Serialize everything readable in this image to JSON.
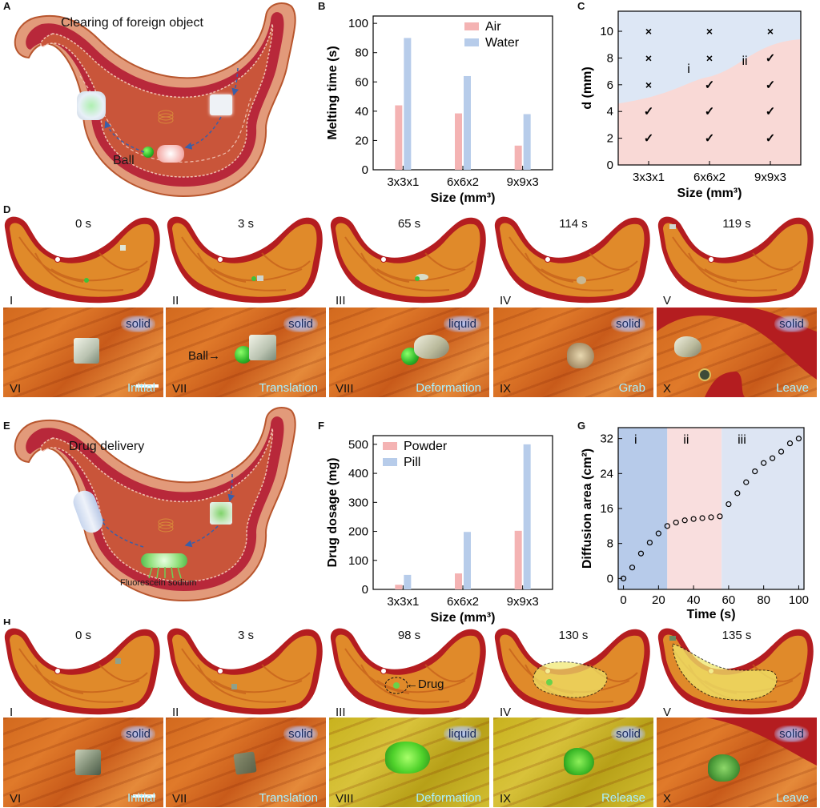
{
  "panels": {
    "A": {
      "letter": "A",
      "caption": "Clearing of foreign object",
      "ball_label": "Ball"
    },
    "B": {
      "letter": "B"
    },
    "C": {
      "letter": "C",
      "region_i": "i",
      "region_ii": "ii"
    },
    "D": {
      "letter": "D",
      "top": [
        {
          "time": "0 s",
          "roman": "I"
        },
        {
          "time": "3 s",
          "roman": "II"
        },
        {
          "time": "65 s",
          "roman": "III"
        },
        {
          "time": "114 s",
          "roman": "IV"
        },
        {
          "time": "119 s",
          "roman": "V"
        }
      ],
      "bottom": [
        {
          "roman": "VI",
          "state": "solid",
          "action": "Initial"
        },
        {
          "roman": "VII",
          "state": "solid",
          "action": "Translation",
          "ball": "Ball"
        },
        {
          "roman": "VIII",
          "state": "liquid",
          "action": "Deformation"
        },
        {
          "roman": "IX",
          "state": "solid",
          "action": "Grab"
        },
        {
          "roman": "X",
          "state": "solid",
          "action": "Leave"
        }
      ]
    },
    "E": {
      "letter": "E",
      "caption": "Drug delivery",
      "sub_label": "Fluorescein sodium"
    },
    "F": {
      "letter": "F"
    },
    "G": {
      "letter": "G",
      "region_i": "i",
      "region_ii": "ii",
      "region_iii": "iii"
    },
    "H": {
      "letter": "H",
      "top": [
        {
          "time": "0 s",
          "roman": "I"
        },
        {
          "time": "3 s",
          "roman": "II"
        },
        {
          "time": "98 s",
          "roman": "III",
          "drug": "Drug"
        },
        {
          "time": "130 s",
          "roman": "IV"
        },
        {
          "time": "135 s",
          "roman": "V"
        }
      ],
      "bottom": [
        {
          "roman": "VI",
          "state": "solid",
          "action": "Initial"
        },
        {
          "roman": "VII",
          "state": "solid",
          "action": "Translation"
        },
        {
          "roman": "VIII",
          "state": "liquid",
          "action": "Deformation"
        },
        {
          "roman": "IX",
          "state": "solid",
          "action": "Release"
        },
        {
          "roman": "X",
          "state": "solid",
          "action": "Leave"
        }
      ]
    }
  },
  "colors": {
    "air": "#f4b3b3",
    "water": "#b7ccea",
    "safe": "#f9d9d6",
    "unsafe": "#dde7f5",
    "g_i": "#b7cbea",
    "g_ii": "#f9dede",
    "g_iii": "#dde5f3"
  },
  "chart_data": [
    {
      "id": "B",
      "type": "bar",
      "categories": [
        "3x3x1",
        "6x6x2",
        "9x9x3"
      ],
      "series": [
        {
          "name": "Air",
          "values": [
            44,
            38.5,
            16.5
          ]
        },
        {
          "name": "Water",
          "values": [
            90,
            64,
            38
          ]
        }
      ],
      "xlabel": "Size (mm³)",
      "ylabel": "Melting time (s)",
      "yticks": [
        "0",
        "20",
        "40",
        "60",
        "80",
        "100"
      ],
      "ylim": [
        0,
        105
      ],
      "legend": "top-right",
      "grid": false
    },
    {
      "id": "C",
      "type": "scatter",
      "categories": [
        "3x3x1",
        "6x6x2",
        "9x9x3"
      ],
      "xlabel": "Size (mm³)",
      "ylabel": "d (mm)",
      "yticks": [
        "0",
        "2",
        "4",
        "6",
        "8",
        "10"
      ],
      "ylim": [
        0,
        11.5
      ],
      "points": [
        {
          "x": "3x3x1",
          "y": 10,
          "mark": "×"
        },
        {
          "x": "3x3x1",
          "y": 8,
          "mark": "×"
        },
        {
          "x": "3x3x1",
          "y": 6,
          "mark": "×"
        },
        {
          "x": "3x3x1",
          "y": 4,
          "mark": "✓"
        },
        {
          "x": "3x3x1",
          "y": 2,
          "mark": "✓"
        },
        {
          "x": "6x6x2",
          "y": 10,
          "mark": "×"
        },
        {
          "x": "6x6x2",
          "y": 8,
          "mark": "×"
        },
        {
          "x": "6x6x2",
          "y": 6,
          "mark": "✓"
        },
        {
          "x": "6x6x2",
          "y": 4,
          "mark": "✓"
        },
        {
          "x": "6x6x2",
          "y": 2,
          "mark": "✓"
        },
        {
          "x": "9x9x3",
          "y": 10,
          "mark": "×"
        },
        {
          "x": "9x9x3",
          "y": 8,
          "mark": "✓"
        },
        {
          "x": "9x9x3",
          "y": 6,
          "mark": "✓"
        },
        {
          "x": "9x9x3",
          "y": 4,
          "mark": "✓"
        },
        {
          "x": "9x9x3",
          "y": 2,
          "mark": "✓"
        }
      ],
      "boundary_y": [
        4.6,
        6.6,
        9.4
      ],
      "regions": [
        "i",
        "ii"
      ]
    },
    {
      "id": "F",
      "type": "bar",
      "categories": [
        "3x3x1",
        "6x6x2",
        "9x9x3"
      ],
      "series": [
        {
          "name": "Powder",
          "values": [
            16,
            55,
            202
          ]
        },
        {
          "name": "Pill",
          "values": [
            50,
            198,
            500
          ]
        }
      ],
      "xlabel": "Size (mm³)",
      "ylabel": "Drug dosage (mg)",
      "yticks": [
        "0",
        "100",
        "200",
        "300",
        "400",
        "500"
      ],
      "ylim": [
        0,
        530
      ],
      "legend": "top-left",
      "grid": false
    },
    {
      "id": "G",
      "type": "scatter",
      "x": [
        0,
        5,
        10,
        15,
        20,
        25,
        30,
        35,
        40,
        45,
        50,
        55,
        60,
        65,
        70,
        75,
        80,
        85,
        90,
        95,
        100
      ],
      "y": [
        0,
        2.5,
        5.7,
        8.2,
        10.3,
        12,
        12.8,
        13.3,
        13.6,
        13.8,
        14,
        14.2,
        17,
        19.5,
        22,
        24.5,
        26.4,
        27.5,
        29,
        30.9,
        32
      ],
      "xlabel": "Time (s)",
      "ylabel": "Diffusion area (cm²)",
      "xticks": [
        "0",
        "20",
        "40",
        "60",
        "80",
        "100"
      ],
      "yticks": [
        "0",
        "8",
        "16",
        "24",
        "32"
      ],
      "xlim": [
        -3,
        103
      ],
      "ylim": [
        -2.5,
        34.5
      ],
      "regions": [
        {
          "label": "i",
          "from": -3,
          "to": 25
        },
        {
          "label": "ii",
          "from": 25,
          "to": 56
        },
        {
          "label": "iii",
          "from": 56,
          "to": 103
        }
      ]
    }
  ]
}
